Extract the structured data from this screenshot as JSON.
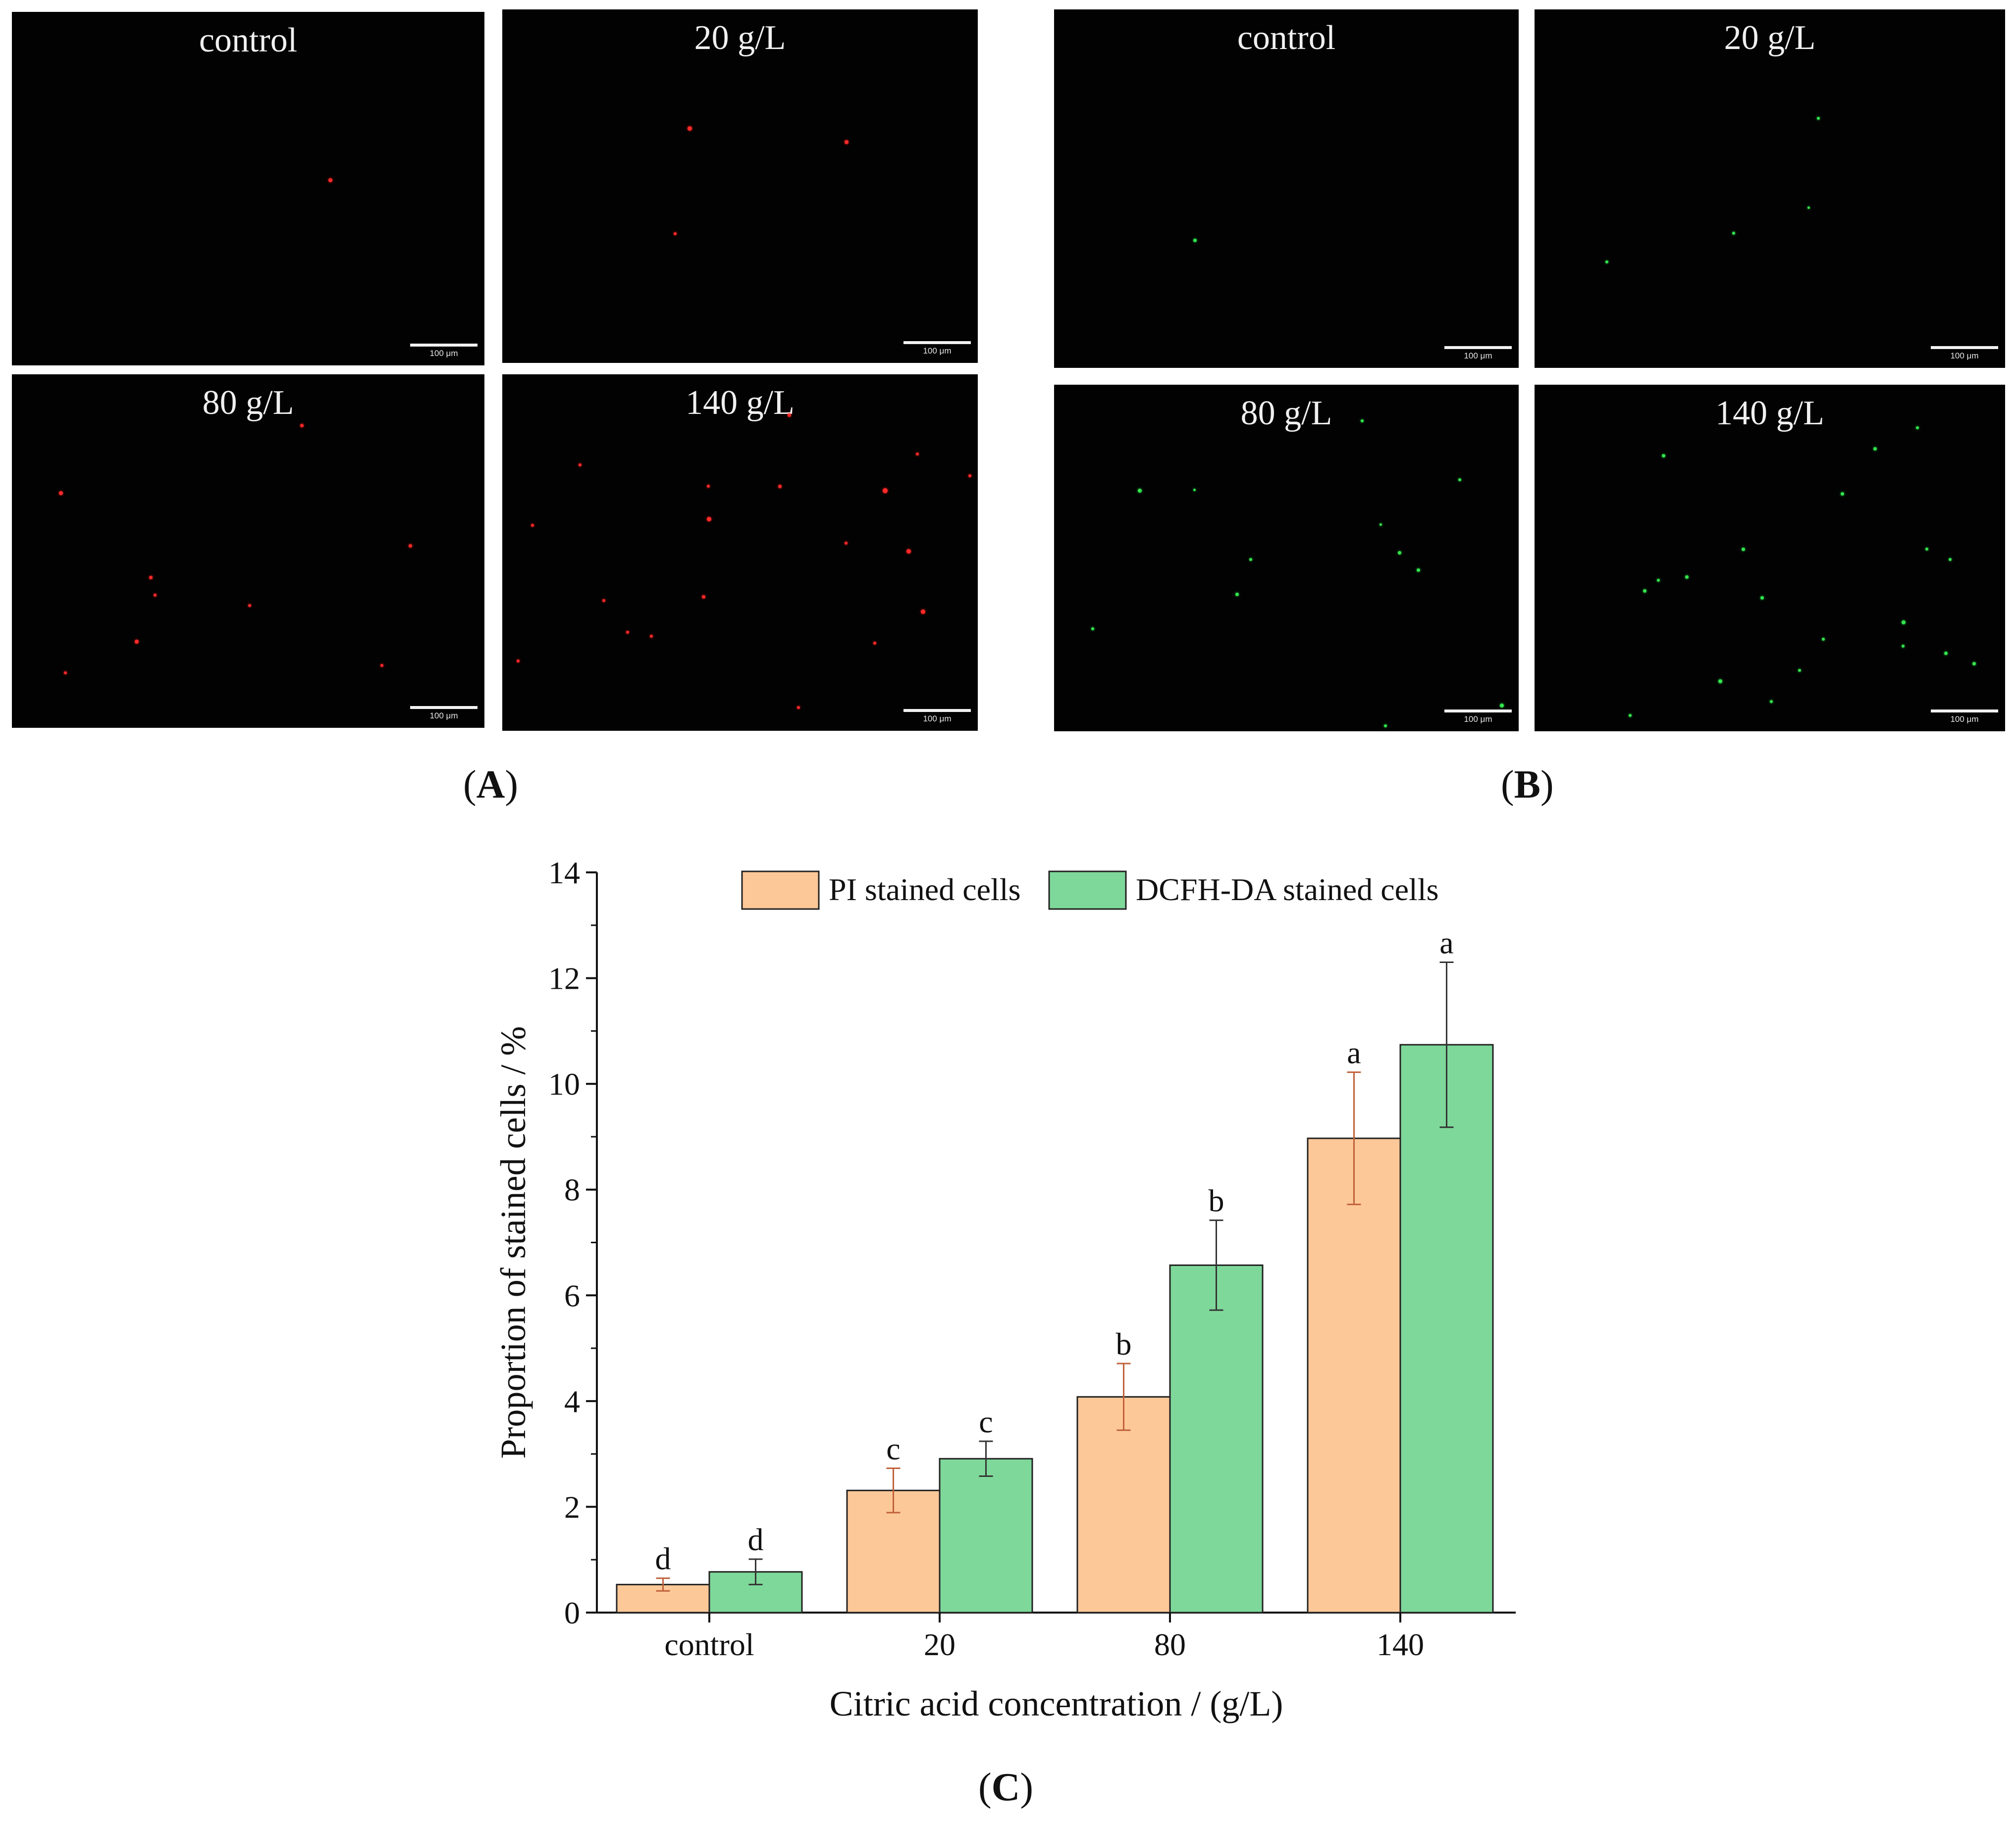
{
  "figure_a": {
    "label": "A",
    "scale_label": "100 μm",
    "color": "#ff2a2a",
    "panels": [
      {
        "title": "control",
        "dots": [
          [
            0.67,
            0.47,
            8
          ]
        ]
      },
      {
        "title": "20 g/L",
        "dots": [
          [
            0.39,
            0.33,
            9
          ],
          [
            0.72,
            0.37,
            8
          ],
          [
            0.36,
            0.63,
            6
          ]
        ]
      },
      {
        "title": "80 g/L",
        "dots": [
          [
            0.61,
            0.14,
            7
          ],
          [
            0.1,
            0.33,
            8
          ],
          [
            0.84,
            0.48,
            7
          ],
          [
            0.29,
            0.57,
            7
          ],
          [
            0.3,
            0.62,
            6
          ],
          [
            0.5,
            0.65,
            6
          ],
          [
            0.26,
            0.75,
            8
          ],
          [
            0.11,
            0.84,
            6
          ],
          [
            0.78,
            0.82,
            6
          ]
        ]
      },
      {
        "title": "140 g/L",
        "dots": [
          [
            0.6,
            0.11,
            7
          ],
          [
            0.58,
            0.31,
            7
          ],
          [
            0.16,
            0.25,
            6
          ],
          [
            0.43,
            0.31,
            6
          ],
          [
            0.43,
            0.4,
            9
          ],
          [
            0.87,
            0.22,
            6
          ],
          [
            0.8,
            0.32,
            10
          ],
          [
            0.98,
            0.28,
            6
          ],
          [
            0.85,
            0.49,
            9
          ],
          [
            0.72,
            0.47,
            6
          ],
          [
            0.06,
            0.42,
            6
          ],
          [
            0.42,
            0.62,
            7
          ],
          [
            0.21,
            0.63,
            6
          ],
          [
            0.26,
            0.72,
            6
          ],
          [
            0.88,
            0.66,
            9
          ],
          [
            0.78,
            0.75,
            6
          ],
          [
            0.03,
            0.8,
            6
          ],
          [
            0.31,
            0.73,
            6
          ],
          [
            0.62,
            0.93,
            6
          ]
        ]
      }
    ]
  },
  "figure_b": {
    "label": "B",
    "scale_label": "100 μm",
    "color": "#33e64d",
    "panels": [
      {
        "title": "control",
        "dots": [
          [
            0.3,
            0.64,
            7
          ]
        ]
      },
      {
        "title": "20 g/L",
        "dots": [
          [
            0.6,
            0.3,
            6
          ],
          [
            0.42,
            0.62,
            6
          ],
          [
            0.15,
            0.7,
            6
          ],
          [
            0.58,
            0.55,
            5
          ]
        ]
      },
      {
        "title": "80 g/L",
        "dots": [
          [
            0.66,
            0.1,
            6
          ],
          [
            0.18,
            0.3,
            8
          ],
          [
            0.3,
            0.3,
            5
          ],
          [
            0.87,
            0.27,
            6
          ],
          [
            0.7,
            0.4,
            5
          ],
          [
            0.74,
            0.48,
            7
          ],
          [
            0.78,
            0.53,
            7
          ],
          [
            0.42,
            0.5,
            6
          ],
          [
            0.39,
            0.6,
            7
          ],
          [
            0.08,
            0.7,
            6
          ],
          [
            0.96,
            0.92,
            8
          ],
          [
            0.71,
            0.98,
            6
          ]
        ]
      },
      {
        "title": "140 g/L",
        "dots": [
          [
            0.27,
            0.2,
            7
          ],
          [
            0.72,
            0.18,
            7
          ],
          [
            0.81,
            0.12,
            6
          ],
          [
            0.65,
            0.31,
            7
          ],
          [
            0.44,
            0.47,
            7
          ],
          [
            0.88,
            0.5,
            6
          ],
          [
            0.32,
            0.55,
            7
          ],
          [
            0.23,
            0.59,
            7
          ],
          [
            0.48,
            0.61,
            7
          ],
          [
            0.78,
            0.68,
            8
          ],
          [
            0.87,
            0.77,
            7
          ],
          [
            0.93,
            0.8,
            7
          ],
          [
            0.78,
            0.75,
            6
          ],
          [
            0.61,
            0.73,
            6
          ],
          [
            0.39,
            0.85,
            8
          ],
          [
            0.56,
            0.82,
            6
          ],
          [
            0.2,
            0.95,
            6
          ],
          [
            0.5,
            0.91,
            6
          ],
          [
            0.83,
            0.47,
            6
          ],
          [
            0.26,
            0.56,
            6
          ]
        ]
      }
    ]
  },
  "figure_c": {
    "label": "C"
  },
  "chart_data": {
    "type": "bar",
    "categories": [
      "control",
      "20",
      "80",
      "140"
    ],
    "series": [
      {
        "name": "PI stained cells",
        "color": "#fdc898",
        "values": [
          0.53,
          2.31,
          4.08,
          8.97
        ],
        "errors": [
          0.12,
          0.42,
          0.63,
          1.25
        ],
        "letters": [
          "d",
          "c",
          "b",
          "a"
        ]
      },
      {
        "name": "DCFH-DA stained cells",
        "color": "#7ed89a",
        "values": [
          0.77,
          2.91,
          6.57,
          10.74
        ],
        "errors": [
          0.24,
          0.33,
          0.85,
          1.56
        ],
        "letters": [
          "d",
          "c",
          "b",
          "a"
        ]
      }
    ],
    "xlabel": "Citric acid concentration / (g/L)",
    "ylabel": "Proportion of stained cells / %",
    "ylim": [
      0,
      14
    ],
    "yticks": [
      0,
      2,
      4,
      6,
      8,
      10,
      12,
      14
    ],
    "legend_position": "top"
  }
}
